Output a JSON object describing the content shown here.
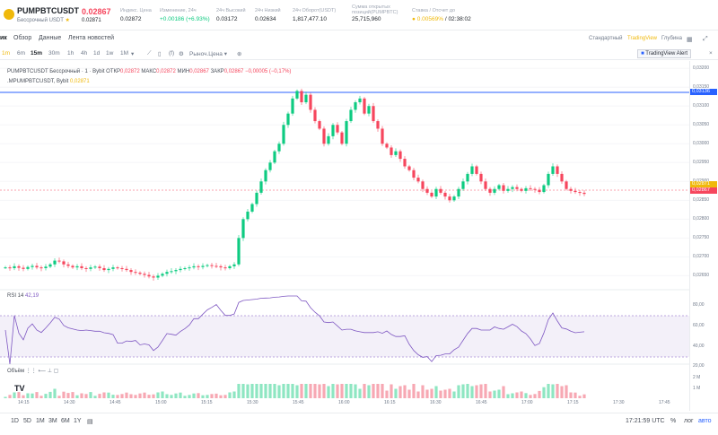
{
  "header": {
    "symbol": "PUMPBTCUSDT",
    "subtitle": "Бессрочный USDT",
    "last_price": "0.02867",
    "mark_price": "0.02871",
    "stats": [
      {
        "label": "Индекс. Цена",
        "value": "0.02872",
        "color": "default"
      },
      {
        "label": "Изменение, 24ч",
        "value": "+0.00186 (+6.93%)",
        "color": "green"
      },
      {
        "label": "24ч Высокий",
        "value": "0.03172",
        "color": "default"
      },
      {
        "label": "24ч Низкий",
        "value": "0.02634",
        "color": "default"
      },
      {
        "label": "24ч Оборот(USDT)",
        "value": "1,817,477.10",
        "color": "default"
      },
      {
        "label": "Сумма открытых позиций(PUMPBTC)",
        "value": "25,715,960",
        "color": "default"
      },
      {
        "label": "Ставка / Отсчет до",
        "value": "0.00569%",
        "value2": "/ 02:38:02",
        "color": "orange"
      }
    ]
  },
  "tabs": {
    "left": [
      "ик",
      "Обзор",
      "Данные",
      "Лента новостей"
    ],
    "right": [
      "Стандартный",
      "TradingView",
      "Глубина"
    ]
  },
  "toolbar": {
    "timeframes": [
      "1m",
      "6m",
      "15m",
      "30m",
      "1h",
      "4h",
      "1d",
      "1w",
      "1M"
    ],
    "active": "15m",
    "price_type": "Рыноч.Цена",
    "alert": "TradingView Alert"
  },
  "legend": {
    "line1_name": "PUMPBTCUSDT Бессрочный · 1 · Bybit",
    "o_label": "ОТКР",
    "o": "0,02872",
    "h_label": "МАКС",
    "h": "0,02872",
    "l_label": "МИН",
    "l": "0,02867",
    "c_label": "ЗАКР",
    "c": "0,02867",
    "change": "−0,00005 (−0,17%)",
    "line2_name": ".MPUMPBTCUSDT, Bybit",
    "line2_value": "0,02871",
    "rsi_label": "RSI 14",
    "rsi_value": "42,19",
    "vol_label": "Объём"
  },
  "price_axis": {
    "ticks": [
      "0,03200",
      "0,03150",
      "0,03100",
      "0,03050",
      "0,03000",
      "0,02950",
      "0,02900",
      "0,02850",
      "0,02800",
      "0,02750",
      "0,02700",
      "0,02650"
    ],
    "blue_tag": "0,03136",
    "mark_tag": "0,02871",
    "last_tag": "0,02867",
    "rsi_ticks": [
      "80,00",
      "60,00",
      "40,00",
      "20,00"
    ],
    "vol_ticks": [
      "2 M",
      "1 M"
    ]
  },
  "time_axis": [
    "14:15",
    "14:30",
    "14:45",
    "15:00",
    "15:15",
    "15:30",
    "15:45",
    "16:00",
    "16:15",
    "16:30",
    "16:45",
    "17:00",
    "17:15",
    "17:30",
    "17:45"
  ],
  "bottom": {
    "ranges": [
      "1D",
      "5D",
      "1M",
      "3M",
      "6M",
      "1Y"
    ],
    "time": "17:21:59 UTC",
    "pct": "%",
    "log": "лог",
    "auto": "авто"
  },
  "chart_data": {
    "type": "candlestick",
    "price_range": [
      0.0262,
      0.0321
    ],
    "closes": [
      0.02672,
      0.0267,
      0.02675,
      0.02671,
      0.02668,
      0.02673,
      0.02676,
      0.02672,
      0.0267,
      0.02674,
      0.0268,
      0.0269,
      0.02688,
      0.0268,
      0.02676,
      0.02672,
      0.02675,
      0.0267,
      0.02668,
      0.02672,
      0.02674,
      0.0267,
      0.02665,
      0.02668,
      0.02672,
      0.0267,
      0.02668,
      0.02665,
      0.0266,
      0.02658,
      0.02655,
      0.02652,
      0.02648,
      0.02645,
      0.0265,
      0.02655,
      0.0266,
      0.02662,
      0.02665,
      0.02668,
      0.0267,
      0.02672,
      0.02675,
      0.02673,
      0.02676,
      0.02678,
      0.02676,
      0.02675,
      0.02672,
      0.0267,
      0.02675,
      0.0268,
      0.0275,
      0.028,
      0.0282,
      0.0284,
      0.0287,
      0.029,
      0.0293,
      0.0295,
      0.0298,
      0.03,
      0.0305,
      0.0308,
      0.0312,
      0.0314,
      0.0311,
      0.0313,
      0.0309,
      0.0306,
      0.0304,
      0.03,
      0.0302,
      0.0305,
      0.0303,
      0.03,
      0.0306,
      0.0309,
      0.0311,
      0.0312,
      0.0308,
      0.031,
      0.0306,
      0.0304,
      0.03,
      0.0299,
      0.0297,
      0.0298,
      0.0296,
      0.0294,
      0.0293,
      0.0291,
      0.029,
      0.0288,
      0.0287,
      0.0286,
      0.0288,
      0.0287,
      0.0286,
      0.0285,
      0.0286,
      0.0288,
      0.029,
      0.0292,
      0.0294,
      0.0292,
      0.029,
      0.0288,
      0.0287,
      0.0288,
      0.0289,
      0.02875,
      0.0288,
      0.02885,
      0.0288,
      0.02875,
      0.02882,
      0.0288,
      0.02878,
      0.02872,
      0.0289,
      0.0292,
      0.0294,
      0.0292,
      0.029,
      0.0288,
      0.02875,
      0.02872,
      0.0287,
      0.02867
    ]
  }
}
